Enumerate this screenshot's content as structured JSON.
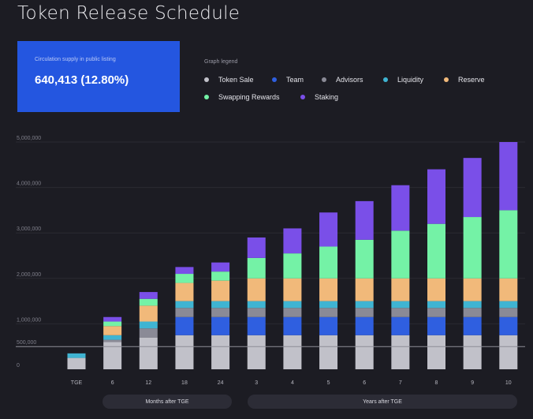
{
  "title": "Token Release Schedule",
  "supply_card": {
    "label": "Circulation supply in public listing",
    "value": "640,413 (12.80%)"
  },
  "legend": {
    "title": "Graph legend",
    "items": [
      {
        "label": "Token Sale",
        "color": "#c1c1c9"
      },
      {
        "label": "Team",
        "color": "#2f5fe0"
      },
      {
        "label": "Advisors",
        "color": "#8a8a96"
      },
      {
        "label": "Liquidity",
        "color": "#3fb4d2"
      },
      {
        "label": "Reserve",
        "color": "#f1b97a"
      },
      {
        "label": "Swapping Rewards",
        "color": "#74f2a6"
      },
      {
        "label": "Staking",
        "color": "#7a4fe8"
      }
    ]
  },
  "axis_groups": {
    "months": "Months after TGE",
    "years": "Years after TGE"
  },
  "chart_data": {
    "type": "bar",
    "stacked": true,
    "categories": [
      "TGE",
      "6",
      "12",
      "18",
      "24",
      "3",
      "4",
      "5",
      "6",
      "7",
      "8",
      "9",
      "10"
    ],
    "y_ticks": [
      "0",
      "500,000",
      "1,000,000",
      "2,000,000",
      "3,000,000",
      "4,000,000",
      "5,000,000"
    ],
    "y_tick_values": [
      0,
      500000,
      1000000,
      2000000,
      3000000,
      4000000,
      5000000
    ],
    "ylim": [
      0,
      5000000
    ],
    "reference_line": 500000,
    "series": [
      {
        "name": "Token Sale",
        "color": "#c1c1c9",
        "values": [
          250000,
          600000,
          700000,
          750000,
          750000,
          750000,
          750000,
          750000,
          750000,
          750000,
          750000,
          750000,
          750000
        ]
      },
      {
        "name": "Team",
        "color": "#2f5fe0",
        "values": [
          0,
          0,
          0,
          400000,
          400000,
          400000,
          400000,
          400000,
          400000,
          400000,
          400000,
          400000,
          400000
        ]
      },
      {
        "name": "Advisors",
        "color": "#8a8a96",
        "values": [
          0,
          50000,
          200000,
          200000,
          200000,
          200000,
          200000,
          200000,
          200000,
          200000,
          200000,
          200000,
          200000
        ]
      },
      {
        "name": "Liquidity",
        "color": "#3fb4d2",
        "values": [
          100000,
          100000,
          150000,
          150000,
          150000,
          150000,
          150000,
          150000,
          150000,
          150000,
          150000,
          150000,
          150000
        ]
      },
      {
        "name": "Reserve",
        "color": "#f1b97a",
        "values": [
          0,
          200000,
          350000,
          400000,
          450000,
          500000,
          500000,
          500000,
          500000,
          500000,
          500000,
          500000,
          500000
        ]
      },
      {
        "name": "Swapping Rewards",
        "color": "#74f2a6",
        "values": [
          0,
          100000,
          150000,
          200000,
          200000,
          450000,
          550000,
          700000,
          850000,
          1050000,
          1200000,
          1350000,
          1500000
        ]
      },
      {
        "name": "Staking",
        "color": "#7a4fe8",
        "values": [
          0,
          100000,
          150000,
          150000,
          200000,
          450000,
          550000,
          750000,
          850000,
          1000000,
          1200000,
          1300000,
          1500000
        ]
      }
    ]
  }
}
